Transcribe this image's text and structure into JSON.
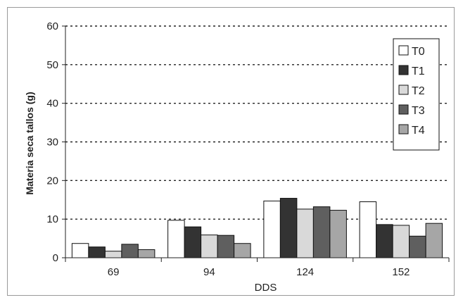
{
  "chart_data": {
    "type": "bar",
    "title": "",
    "xlabel": "DDS",
    "ylabel": "Materia seca tallos (g)",
    "ylim": [
      0,
      60
    ],
    "yticks": [
      0,
      10,
      20,
      30,
      40,
      50,
      60
    ],
    "grid": "horizontal dotted",
    "legend_position": "top-right",
    "categories": [
      "69",
      "94",
      "124",
      "152"
    ],
    "series": [
      {
        "name": "T0",
        "color": "#ffffff",
        "values": [
          3.7,
          9.7,
          14.7,
          14.5
        ]
      },
      {
        "name": "T1",
        "color": "#333333",
        "values": [
          2.8,
          8.0,
          15.4,
          8.6
        ]
      },
      {
        "name": "T2",
        "color": "#d9d9d9",
        "values": [
          1.7,
          5.9,
          12.6,
          8.4
        ]
      },
      {
        "name": "T3",
        "color": "#5f5f5f",
        "values": [
          3.5,
          5.8,
          13.2,
          5.6
        ]
      },
      {
        "name": "T4",
        "color": "#a6a6a6",
        "values": [
          2.1,
          3.7,
          12.3,
          8.9
        ]
      }
    ]
  }
}
